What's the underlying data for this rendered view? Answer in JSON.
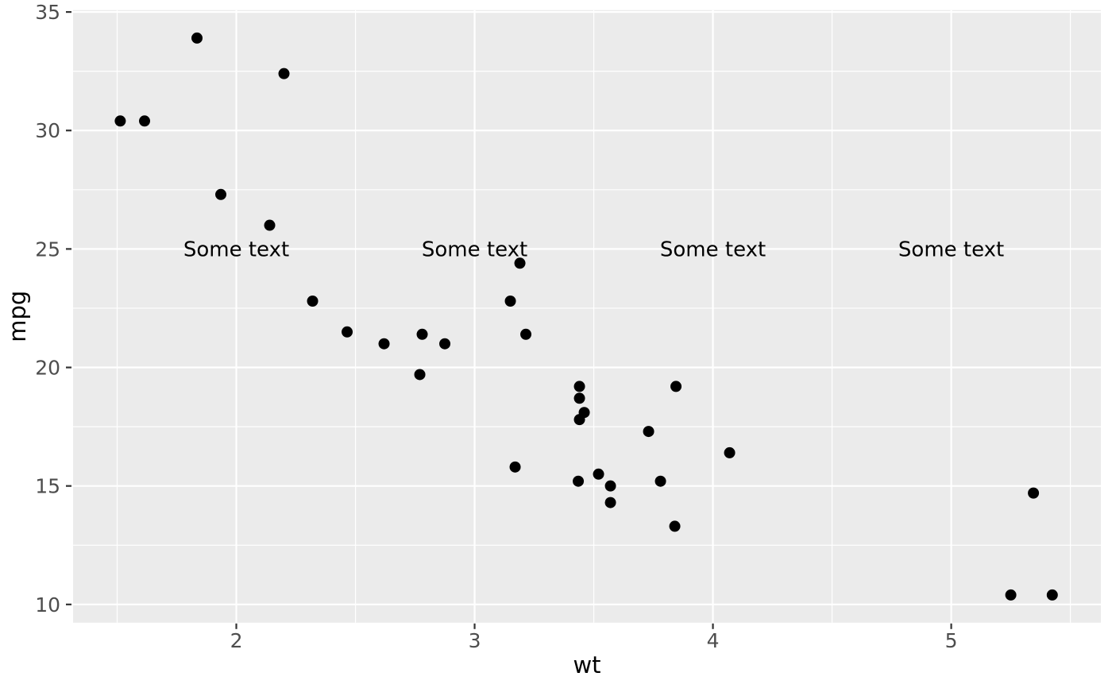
{
  "figure": {
    "background_color": "#FFFFFF",
    "panel_background_color": "#EBEBEB",
    "grid_color": "#FFFFFF",
    "point_color": "#000000",
    "tick_mark_color": "#333333",
    "tick_label_color": "#4D4D4D",
    "axis_title_color": "#000000",
    "annotation_color": "#000000"
  },
  "chart_data": {
    "type": "scatter",
    "title": "",
    "xlabel": "wt",
    "ylabel": "mpg",
    "xlim": [
      1.315,
      5.628
    ],
    "ylim": [
      9.23,
      35.08
    ],
    "x_ticks": [
      2,
      3,
      4,
      5
    ],
    "y_ticks": [
      10,
      15,
      20,
      25,
      30,
      35
    ],
    "x_minor_ticks": [
      1.5,
      2.5,
      3.5,
      4.5,
      5.5
    ],
    "y_minor_ticks": [
      12.5,
      17.5,
      22.5,
      27.5,
      32.5
    ],
    "grid": true,
    "legend": false,
    "point_radius": 7,
    "points": [
      {
        "x": 2.62,
        "y": 21.0
      },
      {
        "x": 2.875,
        "y": 21.0
      },
      {
        "x": 2.32,
        "y": 22.8
      },
      {
        "x": 3.215,
        "y": 21.4
      },
      {
        "x": 3.44,
        "y": 18.7
      },
      {
        "x": 3.46,
        "y": 18.1
      },
      {
        "x": 3.57,
        "y": 14.3
      },
      {
        "x": 3.19,
        "y": 24.4
      },
      {
        "x": 3.15,
        "y": 22.8
      },
      {
        "x": 3.44,
        "y": 19.2
      },
      {
        "x": 3.44,
        "y": 17.8
      },
      {
        "x": 4.07,
        "y": 16.4
      },
      {
        "x": 3.73,
        "y": 17.3
      },
      {
        "x": 3.78,
        "y": 15.2
      },
      {
        "x": 5.25,
        "y": 10.4
      },
      {
        "x": 5.424,
        "y": 10.4
      },
      {
        "x": 5.345,
        "y": 14.7
      },
      {
        "x": 2.2,
        "y": 32.4
      },
      {
        "x": 1.615,
        "y": 30.4
      },
      {
        "x": 1.835,
        "y": 33.9
      },
      {
        "x": 2.465,
        "y": 21.5
      },
      {
        "x": 3.52,
        "y": 15.5
      },
      {
        "x": 3.435,
        "y": 15.2
      },
      {
        "x": 3.84,
        "y": 13.3
      },
      {
        "x": 3.845,
        "y": 19.2
      },
      {
        "x": 1.935,
        "y": 27.3
      },
      {
        "x": 2.14,
        "y": 26.0
      },
      {
        "x": 1.513,
        "y": 30.4
      },
      {
        "x": 3.17,
        "y": 15.8
      },
      {
        "x": 2.77,
        "y": 19.7
      },
      {
        "x": 3.57,
        "y": 15.0
      },
      {
        "x": 2.78,
        "y": 21.4
      }
    ],
    "annotations": [
      {
        "x": 2,
        "y": 25,
        "label": "Some text"
      },
      {
        "x": 3,
        "y": 25,
        "label": "Some text"
      },
      {
        "x": 4,
        "y": 25,
        "label": "Some text"
      },
      {
        "x": 5,
        "y": 25,
        "label": "Some text"
      }
    ]
  }
}
